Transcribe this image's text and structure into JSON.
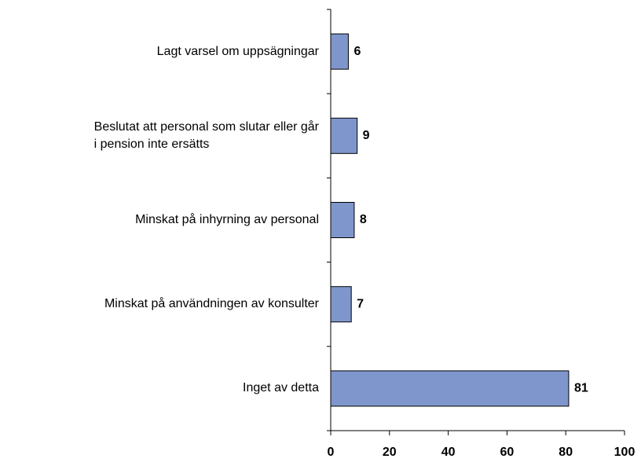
{
  "chart_data": {
    "type": "barh",
    "categories": [
      "Lagt varsel om uppsägningar",
      "Beslutat att personal som slutar eller går\ni pension inte ersätts",
      "Minskat på inhyrning av personal",
      "Minskat på användningen av konsulter",
      "Inget av detta"
    ],
    "values": [
      6,
      9,
      8,
      7,
      81
    ],
    "color": "#7f96cc",
    "xlim": [
      0,
      100
    ],
    "xticks": [
      0,
      20,
      40,
      60,
      80,
      100
    ]
  }
}
